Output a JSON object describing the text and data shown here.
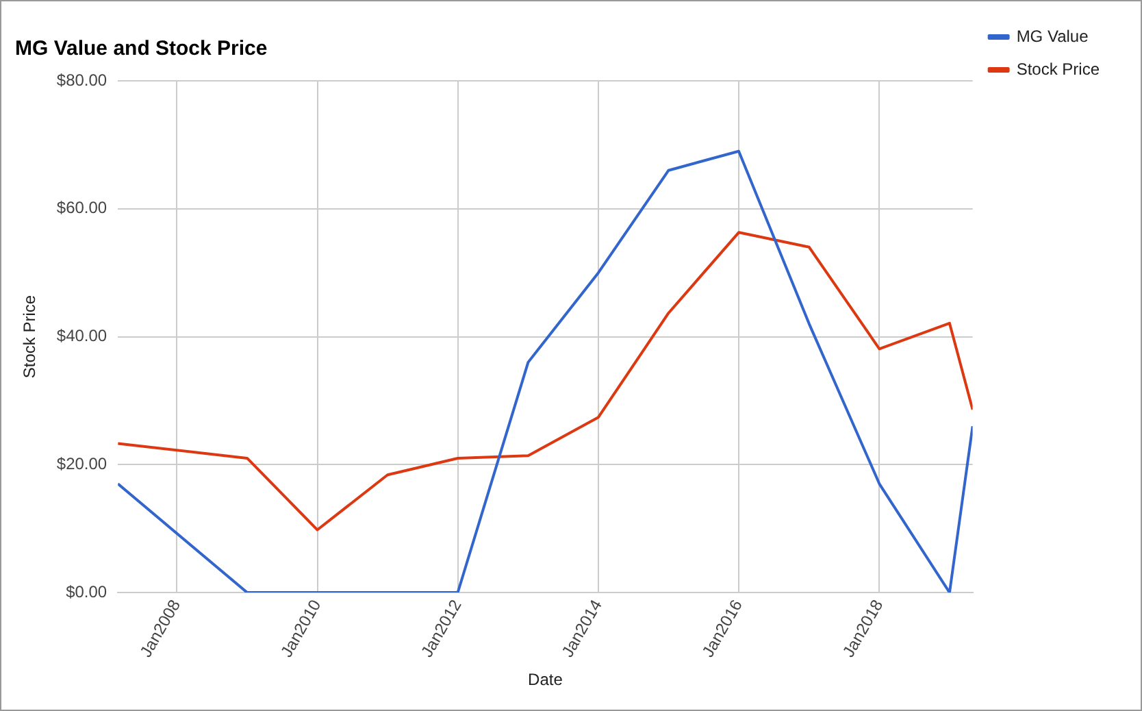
{
  "chart_data": {
    "type": "line",
    "title": "MG Value and Stock Price",
    "xlabel": "Date",
    "ylabel": "Stock Price",
    "xlim": [
      "2007-03",
      "2019-05"
    ],
    "xticks": [
      {
        "value": "2008-01",
        "label": "Jan2008"
      },
      {
        "value": "2010-01",
        "label": "Jan2010"
      },
      {
        "value": "2012-01",
        "label": "Jan2012"
      },
      {
        "value": "2014-01",
        "label": "Jan2014"
      },
      {
        "value": "2016-01",
        "label": "Jan2016"
      },
      {
        "value": "2018-01",
        "label": "Jan2018"
      }
    ],
    "ylim": [
      0,
      80
    ],
    "yticks": [
      {
        "value": 0,
        "label": "$0.00"
      },
      {
        "value": 20,
        "label": "$20.00"
      },
      {
        "value": 40,
        "label": "$40.00"
      },
      {
        "value": 60,
        "label": "$60.00"
      },
      {
        "value": 80,
        "label": "$80.00"
      }
    ],
    "grid": true,
    "legend": "top right",
    "marker": "none",
    "series": [
      {
        "name": "MG Value",
        "color": "#3366cc",
        "x": [
          "2007-03",
          "2009-01",
          "2010-01",
          "2011-01",
          "2012-01",
          "2013-01",
          "2014-01",
          "2015-01",
          "2016-01",
          "2017-01",
          "2018-01",
          "2019-01",
          "2019-05"
        ],
        "values": [
          17,
          0,
          0,
          0,
          0,
          36,
          50,
          66,
          69,
          42,
          17,
          0,
          26
        ]
      },
      {
        "name": "Stock Price",
        "color": "#dc3912",
        "x": [
          "2007-03",
          "2009-01",
          "2010-01",
          "2011-01",
          "2012-01",
          "2013-01",
          "2014-01",
          "2015-01",
          "2016-01",
          "2017-01",
          "2018-01",
          "2019-01",
          "2019-05"
        ],
        "values": [
          23.3,
          21,
          9.8,
          18.4,
          21,
          21.4,
          27.4,
          43.7,
          56.3,
          54,
          38.1,
          42.1,
          28.6
        ]
      }
    ]
  }
}
